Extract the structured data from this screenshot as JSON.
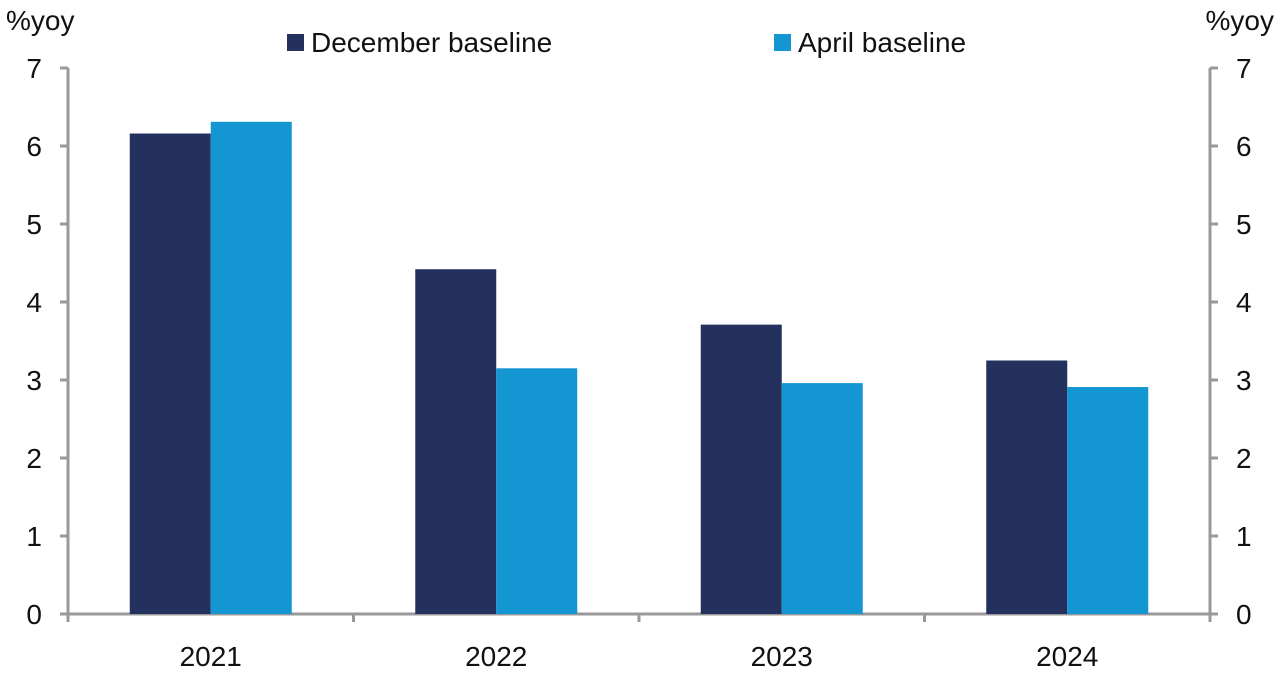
{
  "chart_data": {
    "type": "bar",
    "left_axis_unit": "%yoy",
    "right_axis_unit": "%yoy",
    "categories": [
      "2021",
      "2022",
      "2023",
      "2024"
    ],
    "series": [
      {
        "name": "December baseline",
        "color": "#24305e",
        "values": [
          6.16,
          4.42,
          3.71,
          3.25
        ]
      },
      {
        "name": "April baseline",
        "color": "#1496d2",
        "values": [
          6.31,
          3.15,
          2.96,
          2.91
        ]
      }
    ],
    "ylim": [
      0,
      7
    ],
    "yticks": [
      "0",
      "1",
      "2",
      "3",
      "4",
      "5",
      "6",
      "7"
    ],
    "dual_axis": true,
    "grid": false,
    "legend_position": "top-center"
  }
}
